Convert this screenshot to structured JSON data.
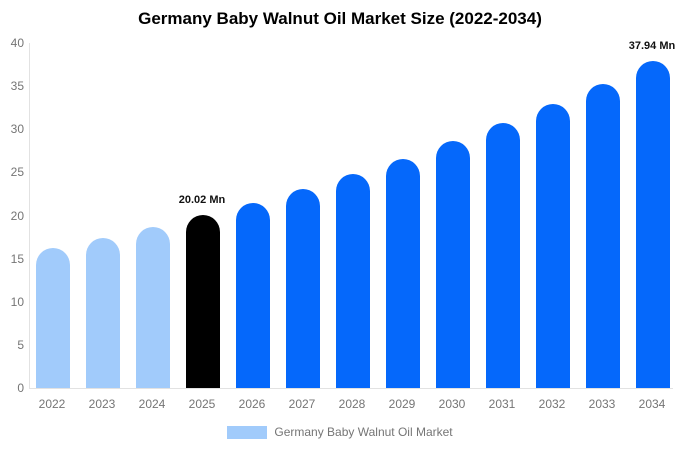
{
  "chart_data": {
    "type": "bar",
    "title": "Germany Baby Walnut Oil Market Size (2022-2034)",
    "categories": [
      "2022",
      "2023",
      "2024",
      "2025",
      "2026",
      "2027",
      "2028",
      "2029",
      "2030",
      "2031",
      "2032",
      "2033",
      "2034"
    ],
    "values": [
      16.2,
      17.4,
      18.7,
      20.02,
      21.5,
      23.1,
      24.8,
      26.6,
      28.6,
      30.7,
      32.9,
      35.3,
      37.94
    ],
    "unit": "Mn",
    "xlabel": "",
    "ylabel": "",
    "ylim": [
      0,
      40
    ],
    "y_ticks": [
      0,
      5,
      10,
      15,
      20,
      25,
      30,
      35,
      40
    ],
    "grid": false,
    "legend": {
      "label": "Germany Baby Walnut Oil Market",
      "position": "bottom"
    },
    "annotations": [
      {
        "category": "2025",
        "text": "20.02 Mn"
      },
      {
        "category": "2034",
        "text": "37.94 Mn"
      }
    ],
    "colors": {
      "historical_bar": "#A1CBFB",
      "highlight_bar": "#000000",
      "forecast_bar": "#0568FB",
      "axis_line": "#E2E2E2",
      "tick_text": "#757575",
      "title_text": "#000000",
      "annotation_text": "#111111"
    },
    "bar_roles": {
      "historical_years": [
        "2022",
        "2023",
        "2024"
      ],
      "highlight_year": "2025"
    }
  }
}
